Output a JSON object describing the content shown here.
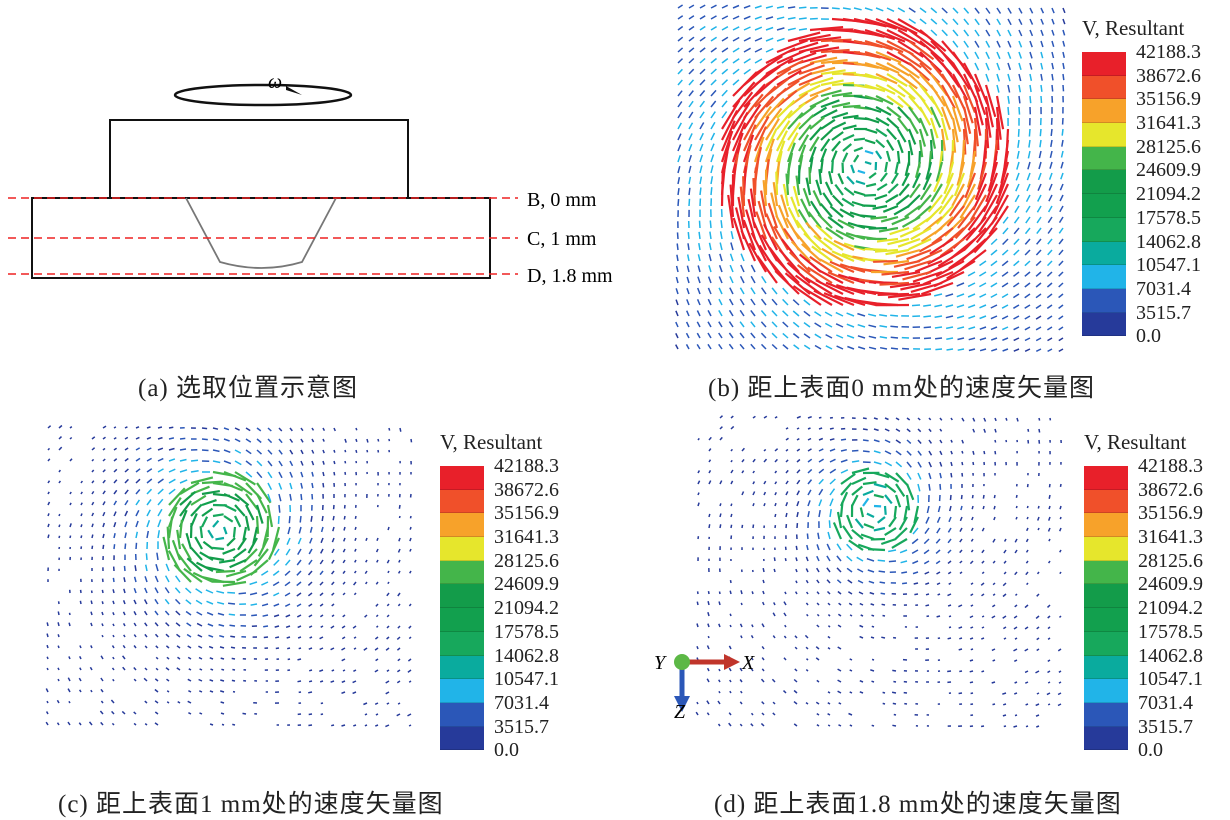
{
  "panels": {
    "a": {
      "caption": "(a) 选取位置示意图",
      "omega_label": "ω",
      "lines": [
        {
          "label": "B, 0 mm"
        },
        {
          "label": "C, 1 mm"
        },
        {
          "label": "D, 1.8 mm"
        }
      ]
    },
    "b": {
      "caption": "(b) 距上表面0 mm处的速度矢量图"
    },
    "c": {
      "caption": "(c) 距上表面1 mm处的速度矢量图"
    },
    "d": {
      "caption": "(d) 距上表面1.8 mm处的速度矢量图"
    }
  },
  "legend": {
    "title": "V, Resultant",
    "values": [
      "42188.3",
      "38672.6",
      "35156.9",
      "31641.3",
      "28125.6",
      "24609.9",
      "21094.2",
      "17578.5",
      "14062.8",
      "10547.1",
      "7031.4",
      "3515.7",
      "0.0"
    ],
    "colors": [
      "#e8202a",
      "#f0502a",
      "#f7a22a",
      "#e6e62c",
      "#44b54a",
      "#139c4a",
      "#12a04e",
      "#17a85c",
      "#0aab9e",
      "#21b4e8",
      "#2b57b8",
      "#263a9a"
    ]
  },
  "axes": {
    "x": "X",
    "y": "Y",
    "z": "Z"
  }
}
